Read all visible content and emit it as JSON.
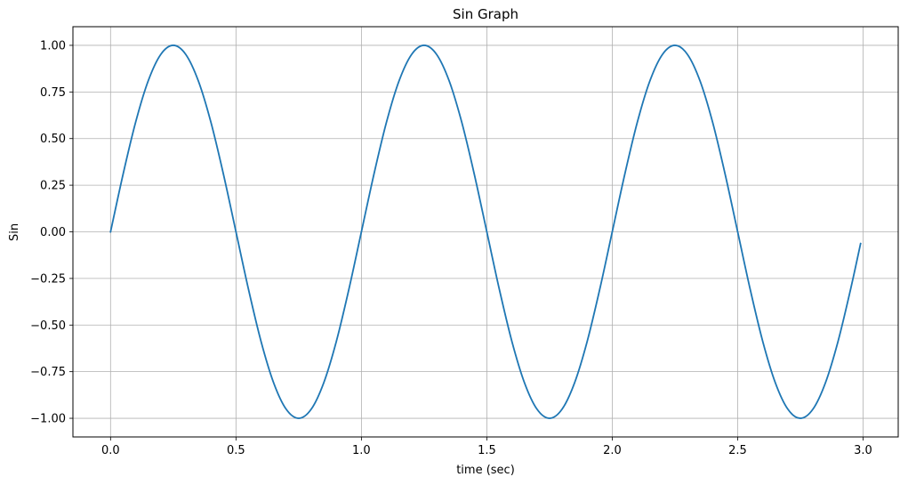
{
  "chart_data": {
    "type": "line",
    "title": "Sin Graph",
    "xlabel": "time  (sec)",
    "ylabel": "Sin",
    "xlim": [
      -0.15,
      3.14
    ],
    "ylim": [
      -1.1,
      1.1
    ],
    "x_ticks": [
      0.0,
      0.5,
      1.0,
      1.5,
      2.0,
      2.5,
      3.0
    ],
    "x_tick_labels": [
      "0.0",
      "0.5",
      "1.0",
      "1.5",
      "2.0",
      "2.5",
      "3.0"
    ],
    "y_ticks": [
      1.0,
      0.75,
      0.5,
      0.25,
      0.0,
      -0.25,
      -0.5,
      -0.75,
      -1.0
    ],
    "y_tick_labels": [
      "1.00",
      "0.75",
      "0.50",
      "0.25",
      "0.00",
      "−0.25",
      "−0.50",
      "−0.75",
      "−1.00"
    ],
    "grid": true,
    "series": [
      {
        "color": "#1f77b4",
        "x": [
          0.0,
          0.05,
          0.1,
          0.15,
          0.2,
          0.25,
          0.3,
          0.35,
          0.4,
          0.45,
          0.5,
          0.55,
          0.6,
          0.65,
          0.7,
          0.75,
          0.8,
          0.85,
          0.9,
          0.95,
          1.0,
          1.05,
          1.1,
          1.15,
          1.2,
          1.25,
          1.3,
          1.35,
          1.4,
          1.45,
          1.5,
          1.55,
          1.6,
          1.65,
          1.7,
          1.75,
          1.8,
          1.85,
          1.9,
          1.95,
          2.0,
          2.05,
          2.1,
          2.15,
          2.2,
          2.25,
          2.3,
          2.35,
          2.4,
          2.45,
          2.5,
          2.55,
          2.6,
          2.65,
          2.7,
          2.75,
          2.8,
          2.85,
          2.9,
          2.95,
          2.99
        ],
        "y": [
          0.0,
          0.309,
          0.588,
          0.809,
          0.951,
          1.0,
          0.951,
          0.809,
          0.588,
          0.309,
          0.0,
          -0.309,
          -0.588,
          -0.809,
          -0.951,
          -1.0,
          -0.951,
          -0.809,
          -0.588,
          -0.309,
          0.0,
          0.309,
          0.588,
          0.809,
          0.951,
          1.0,
          0.951,
          0.809,
          0.588,
          0.309,
          0.0,
          -0.309,
          -0.588,
          -0.809,
          -0.951,
          -1.0,
          -0.951,
          -0.809,
          -0.588,
          -0.309,
          0.0,
          0.309,
          0.588,
          0.809,
          0.951,
          1.0,
          0.951,
          0.809,
          0.588,
          0.309,
          0.0,
          -0.309,
          -0.588,
          -0.809,
          -0.951,
          -1.0,
          -0.951,
          -0.809,
          -0.588,
          -0.309,
          -0.063
        ]
      }
    ]
  }
}
